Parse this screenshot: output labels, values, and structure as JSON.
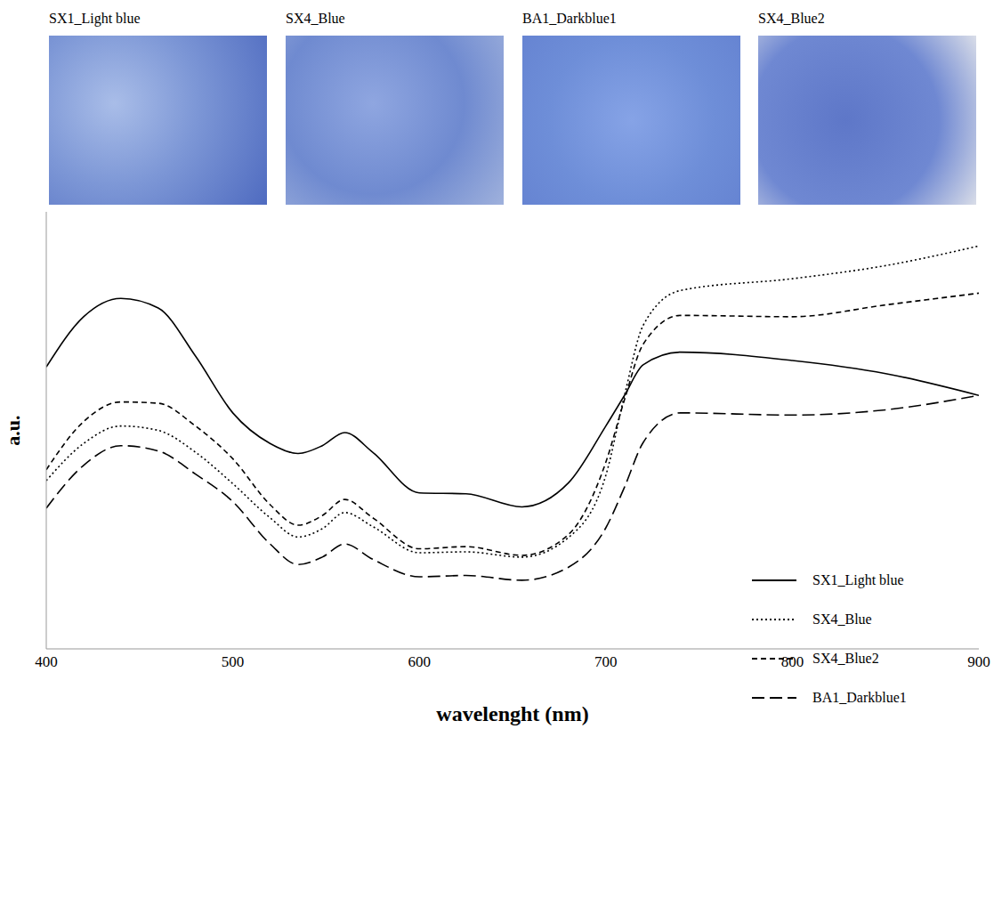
{
  "thumbnails": [
    "SX1_Light blue",
    "SX4_Blue",
    "BA1_Darkblue1",
    "SX4_Blue2"
  ],
  "chart_data": {
    "type": "line",
    "x_label": "wavelenght (nm)",
    "y_label": "a.u.",
    "x": [
      400,
      420,
      440,
      460,
      480,
      500,
      520,
      535,
      548,
      560,
      575,
      600,
      625,
      655,
      680,
      700,
      710,
      720,
      740,
      800,
      850,
      900
    ],
    "xlim": [
      400,
      900
    ],
    "xticks": [
      400,
      500,
      600,
      700,
      800,
      900
    ],
    "ylim": [
      0,
      100
    ],
    "tick_labels": "x",
    "grid": false,
    "legend": "right",
    "series": [
      {
        "name": "SX1_Light blue",
        "color": "#000000",
        "line_style": "solid",
        "values": [
          64.5,
          76,
          80.2,
          78,
          67,
          54,
          47,
          44.7,
          46.5,
          49.5,
          45,
          35.7,
          35.5,
          32.5,
          38,
          51,
          58,
          65,
          67.9,
          66,
          63,
          58
        ]
      },
      {
        "name": "SX4_Blue",
        "color": "#000000",
        "line_style": "dotted",
        "values": [
          38.5,
          47,
          51,
          50,
          45,
          37.8,
          30,
          25.6,
          27.5,
          31.2,
          28,
          22,
          22.2,
          21,
          25.5,
          39.7,
          58,
          74,
          82,
          84.7,
          87.7,
          92.2
        ]
      },
      {
        "name": "SX4_Blue2",
        "color": "#000000",
        "line_style": "dashed",
        "values": [
          41,
          52,
          56.5,
          56.2,
          51,
          43.5,
          33,
          28.3,
          30.5,
          34.2,
          30,
          22.9,
          23.4,
          21.4,
          26.2,
          42.7,
          57,
          69.7,
          76.3,
          76,
          78.7,
          81.4
        ]
      },
      {
        "name": "BA1_Darkblue1",
        "color": "#000000",
        "line_style": "long_dashed",
        "values": [
          32.2,
          42,
          46.5,
          45.3,
          40,
          33.7,
          24,
          19.3,
          21,
          24,
          20.5,
          16.5,
          16.8,
          15.7,
          18.7,
          27.7,
          37,
          47.2,
          54,
          53.5,
          54.7,
          58
        ]
      }
    ]
  }
}
